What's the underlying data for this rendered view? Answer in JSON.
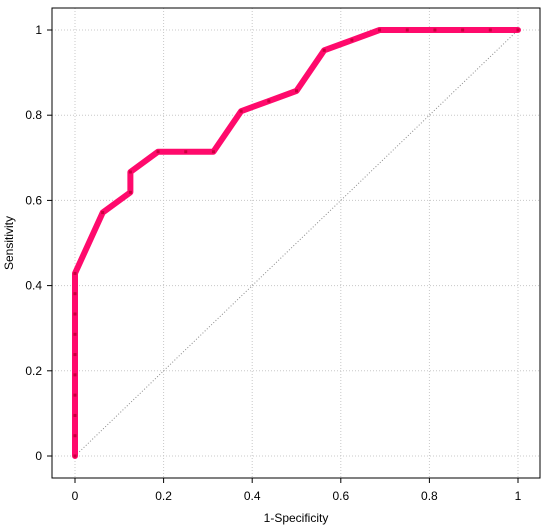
{
  "chart_data": {
    "type": "line",
    "title": "",
    "xlabel": "1-Specificity",
    "ylabel": "Sensitivity",
    "xlim": [
      0,
      1
    ],
    "ylim": [
      0,
      1
    ],
    "grid": true,
    "xticks": [
      0,
      0.2,
      0.4,
      0.6,
      0.8,
      1
    ],
    "yticks": [
      0,
      0.2,
      0.4,
      0.6,
      0.8,
      1
    ],
    "xtick_labels": [
      "0",
      "0.2",
      "0.4",
      "0.6",
      "0.8",
      "1"
    ],
    "ytick_labels": [
      "0",
      "0.2",
      "0.4",
      "0.6",
      "0.8",
      "1"
    ],
    "colors": {
      "roc_line": "#ff0a6c",
      "roc_marker": "#c8003c",
      "reference_line": "#8c8c8c",
      "grid": "#c8c8c8",
      "frame": "#000000"
    },
    "series": [
      {
        "x": [
          0,
          0,
          0,
          0,
          0,
          0,
          0,
          0,
          0,
          0,
          0.0625,
          0.125,
          0.125,
          0.1875,
          0.25,
          0.3125,
          0.375,
          0.4375,
          0.5,
          0.5625,
          0.625,
          0.6875,
          0.75,
          0.8125,
          0.875,
          0.9375,
          1
        ],
        "values": [
          0,
          0.0476,
          0.0952,
          0.1429,
          0.1905,
          0.2381,
          0.2857,
          0.3333,
          0.381,
          0.4286,
          0.5714,
          0.619,
          0.6667,
          0.7143,
          0.7143,
          0.7143,
          0.8095,
          0.8333,
          0.8571,
          0.9524,
          0.9762,
          1,
          1,
          1,
          1,
          1,
          1
        ]
      }
    ],
    "reference_line": {
      "x": [
        0,
        1
      ],
      "values": [
        0,
        1
      ]
    }
  }
}
